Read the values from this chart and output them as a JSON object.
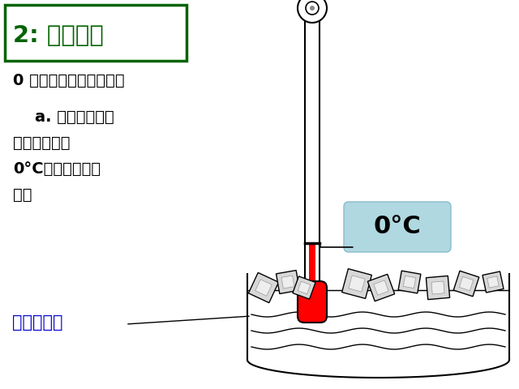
{
  "bg_color": "#ffffff",
  "title_text": "2: 摄氏温度",
  "title_color": "#006400",
  "title_box_color": "#006400",
  "title_bg": "#ffffff",
  "text1": "0 摄氏度是这样规定的：",
  "text2_line1": "    a. 把冰水混合物",
  "text2_line2": "的温度规定为",
  "text2_line3": "0°C，这是水的冰",
  "text2_line4": "点。",
  "text_color": "#000000",
  "label_color": "#0000cd",
  "label_text": "冰水混合物",
  "callout_text": "0°C",
  "callout_bg": "#b0d8e0",
  "thermo_liquid_color": "#ff0000",
  "thermo_bulb_color": "#ff0000"
}
